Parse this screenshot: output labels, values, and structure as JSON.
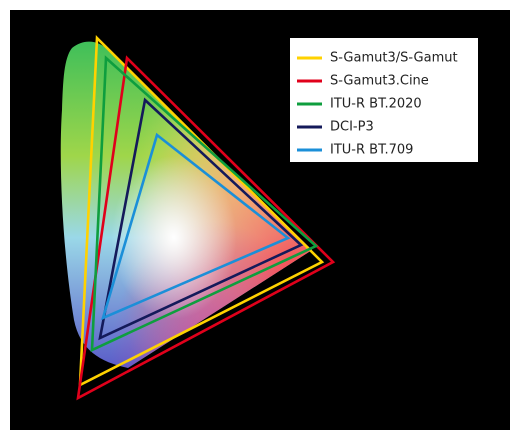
{
  "legend": [
    {
      "name": "S-Gamut3/S-Gamut",
      "color": "#ffd200"
    },
    {
      "name": "S-Gamut3.Cine",
      "color": "#e0001b"
    },
    {
      "name": "ITU-R BT.2020",
      "color": "#0e9e3e"
    },
    {
      "name": "DCI-P3",
      "color": "#141a5a"
    },
    {
      "name": "ITU-R BT.709",
      "color": "#1b8fd8"
    }
  ]
}
